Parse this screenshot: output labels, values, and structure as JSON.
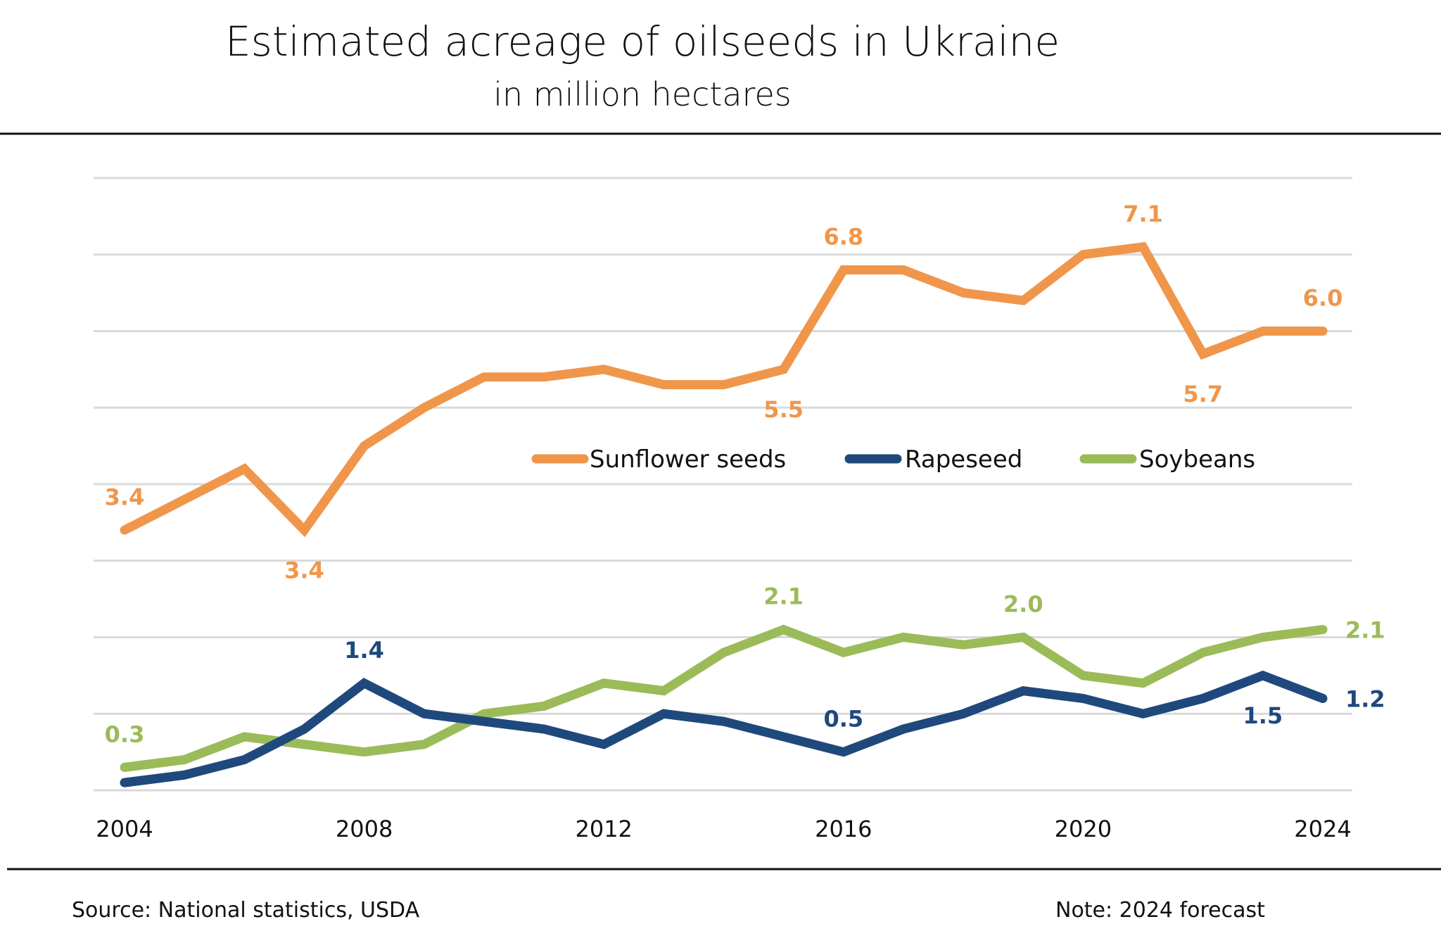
{
  "chart_data": {
    "type": "line",
    "title": "Estimated acreage of oilseeds in  Ukraine",
    "subtitle": "in million hectares",
    "xlabel": "",
    "ylabel": "",
    "x": [
      2004,
      2005,
      2006,
      2007,
      2008,
      2009,
      2010,
      2011,
      2012,
      2013,
      2014,
      2015,
      2016,
      2017,
      2018,
      2019,
      2020,
      2021,
      2022,
      2023,
      2024
    ],
    "xticks": [
      "2004",
      "2008",
      "2012",
      "2016",
      "2020",
      "2024"
    ],
    "ylim": [
      0,
      8
    ],
    "ygrid_step": 1,
    "grid": true,
    "y_tick_labels_visible": false,
    "legend": {
      "placement": "center",
      "entries": [
        "Sunflower seeds",
        "Rapeseed",
        "Soybeans"
      ]
    },
    "series": [
      {
        "name": "Sunflower seeds",
        "color": "#F0964B",
        "values": [
          3.4,
          3.8,
          4.2,
          3.4,
          4.5,
          5.0,
          5.4,
          5.4,
          5.5,
          5.3,
          5.3,
          5.5,
          6.8,
          6.8,
          6.5,
          6.4,
          7.0,
          7.1,
          5.7,
          6.0,
          6.0
        ],
        "labels": [
          {
            "year": 2004,
            "text": "3.4",
            "position": "above"
          },
          {
            "year": 2007,
            "text": "3.4",
            "position": "below"
          },
          {
            "year": 2015,
            "text": "5.5",
            "position": "below"
          },
          {
            "year": 2016,
            "text": "6.8",
            "position": "above"
          },
          {
            "year": 2021,
            "text": "7.1",
            "position": "above"
          },
          {
            "year": 2022,
            "text": "5.7",
            "position": "below"
          },
          {
            "year": 2024,
            "text": "6.0",
            "position": "above"
          }
        ]
      },
      {
        "name": "Rapeseed",
        "color": "#1F497D",
        "values": [
          0.1,
          0.2,
          0.4,
          0.8,
          1.4,
          1.0,
          0.9,
          0.8,
          0.6,
          1.0,
          0.9,
          0.7,
          0.5,
          0.8,
          1.0,
          1.3,
          1.2,
          1.0,
          1.2,
          1.5,
          1.2
        ],
        "labels": [
          {
            "year": 2008,
            "text": "1.4",
            "position": "above"
          },
          {
            "year": 2016,
            "text": "0.5",
            "position": "above"
          },
          {
            "year": 2023,
            "text": "1.5",
            "position": "below"
          },
          {
            "year": 2024,
            "text": "1.2",
            "position": "right"
          }
        ]
      },
      {
        "name": "Soybeans",
        "color": "#9BBB59",
        "values": [
          0.3,
          0.4,
          0.7,
          0.6,
          0.5,
          0.6,
          1.0,
          1.1,
          1.4,
          1.3,
          1.8,
          2.1,
          1.8,
          2.0,
          1.9,
          2.0,
          1.5,
          1.4,
          1.8,
          2.0,
          2.1
        ],
        "labels": [
          {
            "year": 2004,
            "text": "0.3",
            "position": "above"
          },
          {
            "year": 2015,
            "text": "2.1",
            "position": "above"
          },
          {
            "year": 2019,
            "text": "2.0",
            "position": "above"
          },
          {
            "year": 2024,
            "text": "2.1",
            "position": "right"
          }
        ]
      }
    ],
    "source": "Source:  National statistics, USDA",
    "note": "Note: 2024 forecast"
  }
}
